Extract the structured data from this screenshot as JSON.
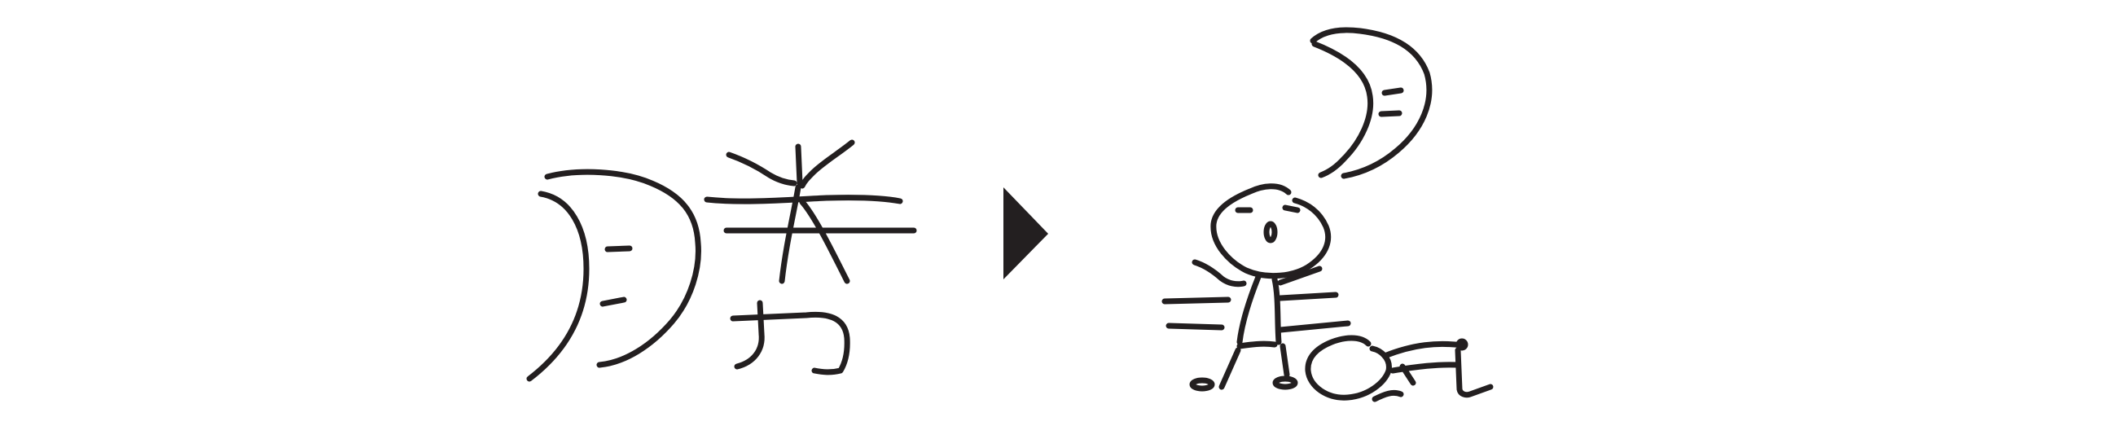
{
  "colors": {
    "background": "#ffffff",
    "ink": "#231f20"
  },
  "panels": {
    "left": {
      "icon": "handwritten-kanji-glyph"
    },
    "arrow": {
      "icon": "play-triangle-icon"
    },
    "right": {
      "icon": "stick-figure-drawing"
    }
  }
}
